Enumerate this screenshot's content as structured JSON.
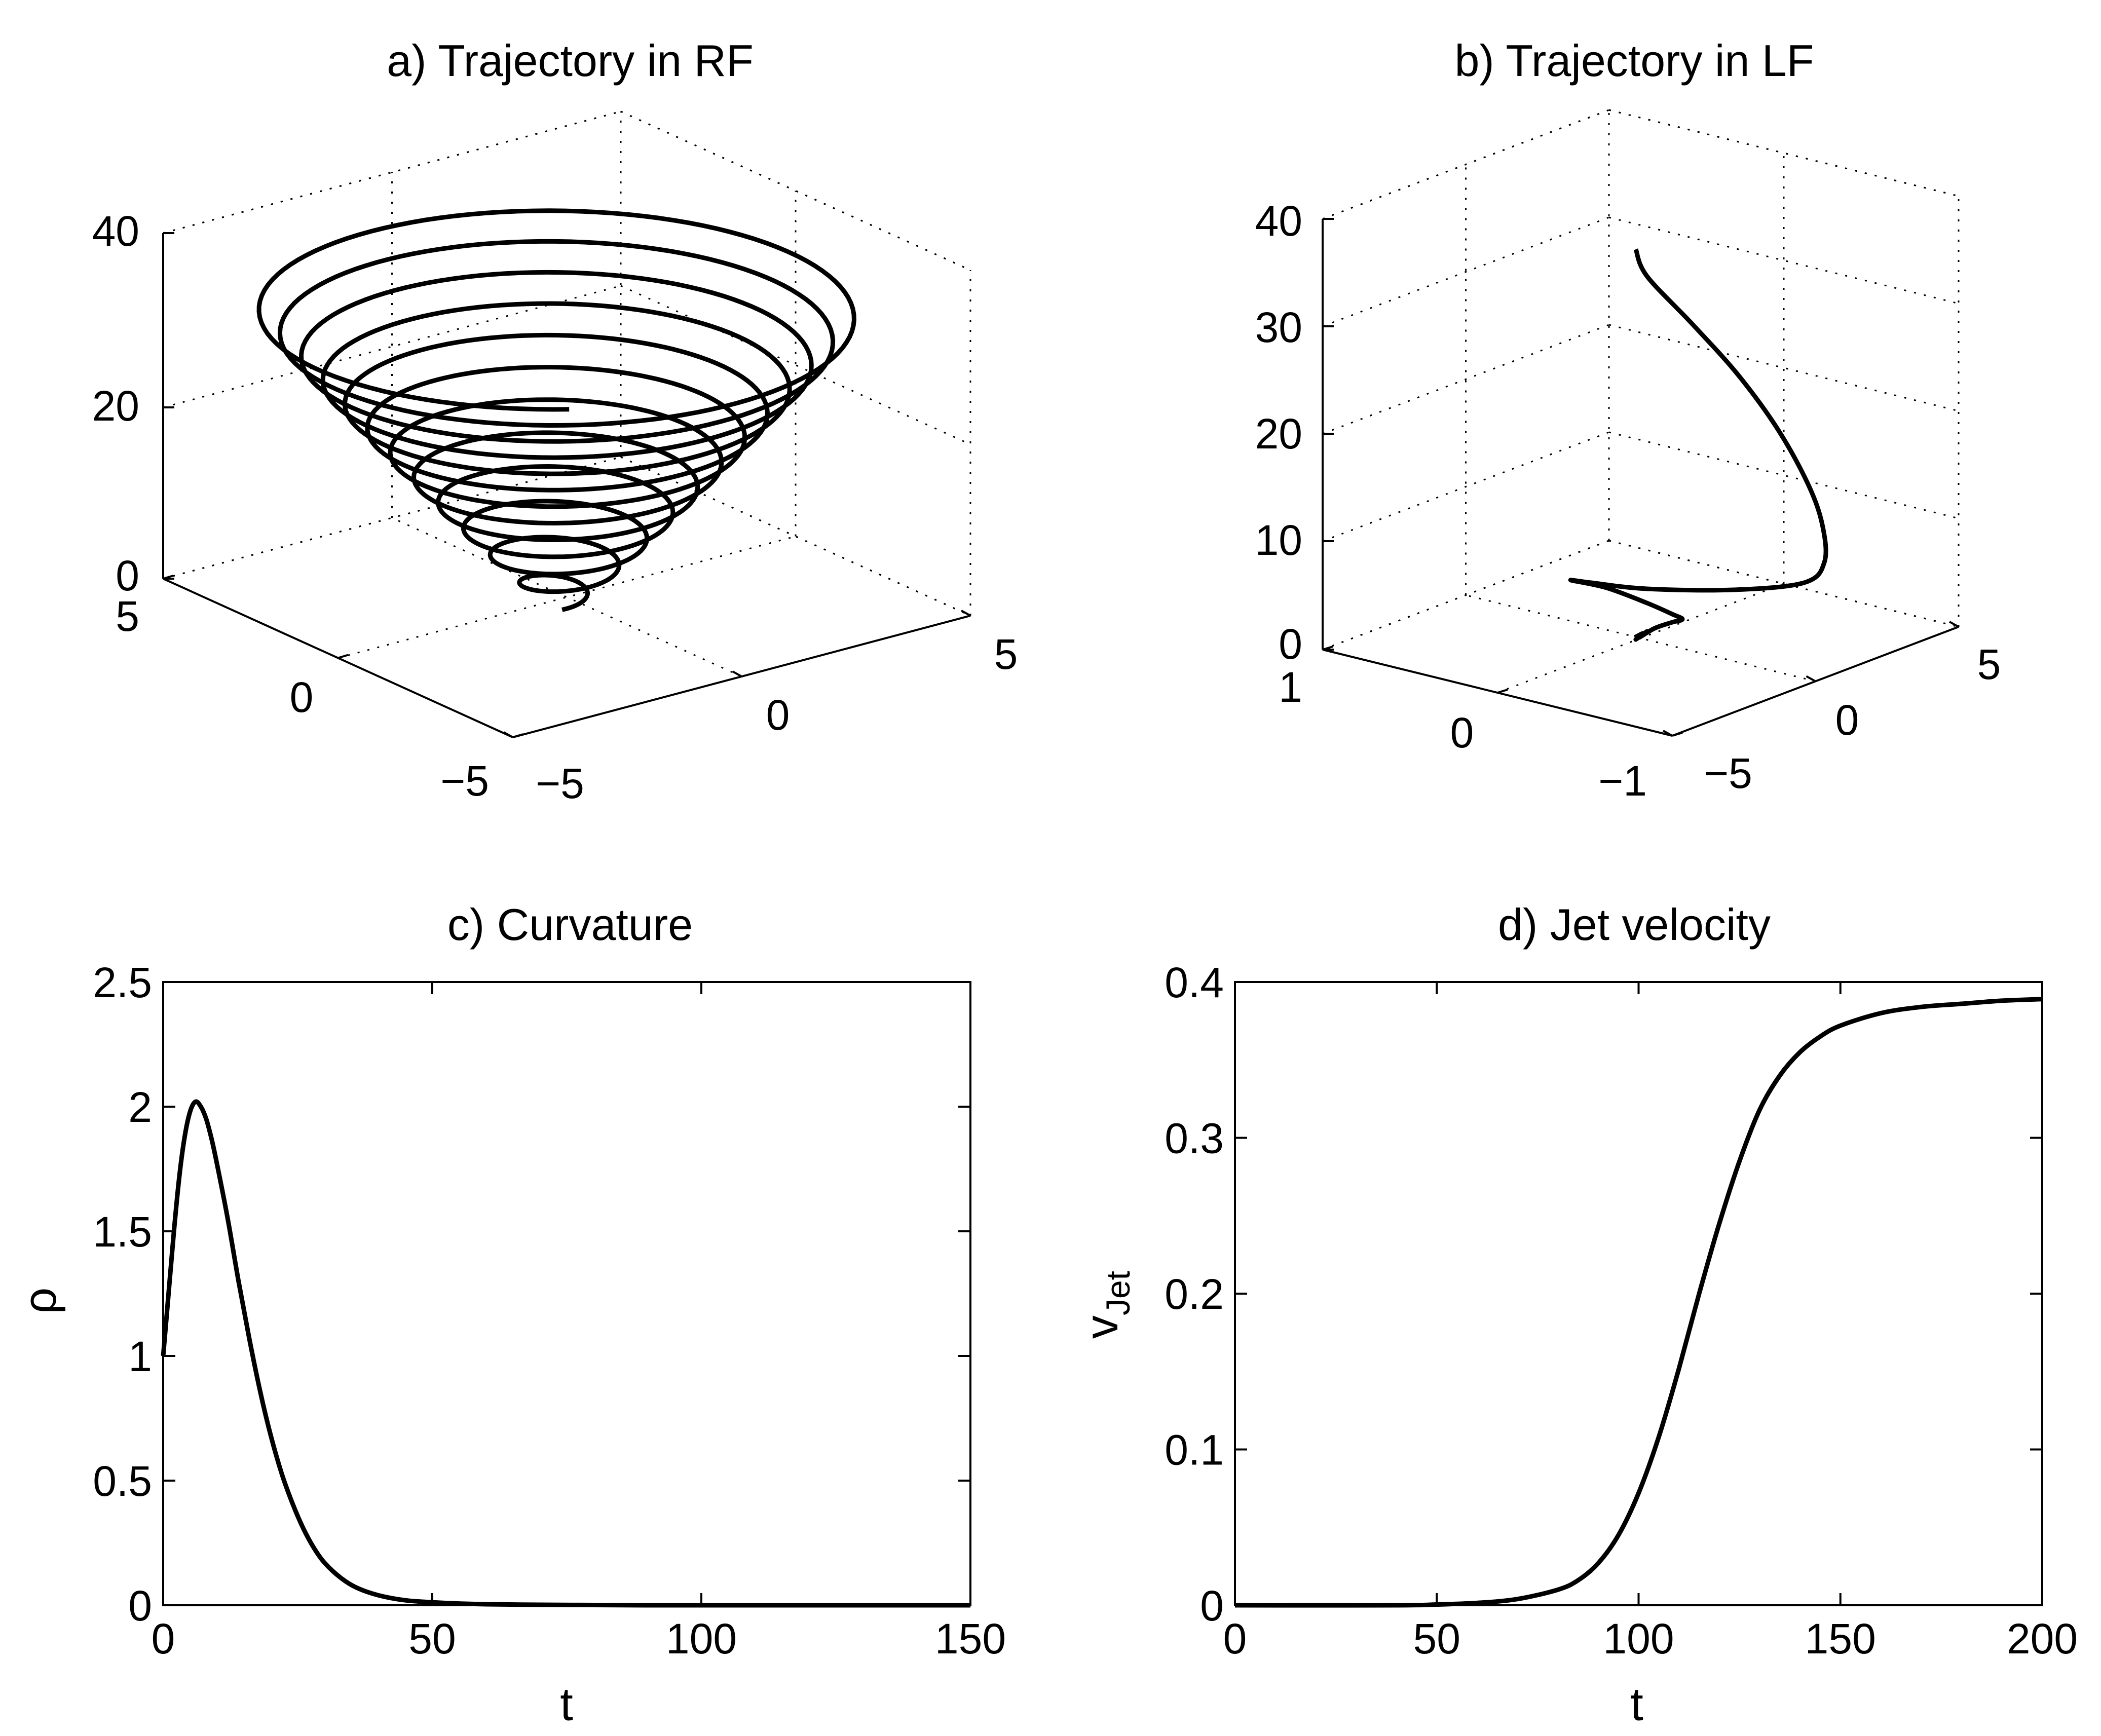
{
  "chart_data": [
    {
      "id": "a",
      "type": "line3d",
      "title": "a) Trajectory in RF",
      "axes": {
        "x": {
          "range": [
            -5,
            5
          ],
          "ticks": [
            -5,
            0,
            5
          ],
          "tick_labels": [
            "−5",
            "0",
            "5"
          ]
        },
        "y": {
          "range": [
            -5,
            5
          ],
          "ticks": [
            -5,
            0,
            5
          ],
          "tick_labels": [
            "−5",
            "0",
            "5"
          ]
        },
        "z": {
          "range": [
            0,
            40
          ],
          "ticks": [
            0,
            20,
            40
          ],
          "tick_labels": [
            "0",
            "20",
            "40"
          ]
        }
      },
      "grid": true,
      "series": [
        {
          "name": "trajectory",
          "description": "conical helix, ~12 turns, radius growing from ~0 at z=0 to ~5 at z=35",
          "turns": 12,
          "z_range": [
            0,
            35
          ],
          "max_radius": 5
        }
      ]
    },
    {
      "id": "b",
      "type": "line3d",
      "title": "b) Trajectory in LF",
      "axes": {
        "x": {
          "range": [
            -1,
            1
          ],
          "ticks": [
            -1,
            0,
            1
          ],
          "tick_labels": [
            "−1",
            "0",
            "1"
          ]
        },
        "y": {
          "range": [
            -5,
            5
          ],
          "ticks": [
            -5,
            0,
            5
          ],
          "tick_labels": [
            "−5",
            "0",
            "5"
          ]
        },
        "z": {
          "range": [
            0,
            40
          ],
          "ticks": [
            0,
            10,
            20,
            30,
            40
          ],
          "tick_labels": [
            "0",
            "10",
            "20",
            "30",
            "40"
          ]
        }
      },
      "grid": true,
      "series": [
        {
          "name": "trajectory",
          "description": "small oscillation near origin growing into a large curve rising to z~35"
        }
      ]
    },
    {
      "id": "c",
      "type": "line",
      "title": "c) Curvature",
      "xlabel": "t",
      "ylabel": "ρ",
      "xlim": [
        0,
        150
      ],
      "ylim": [
        0,
        2.5
      ],
      "xticks": [
        0,
        50,
        100,
        150
      ],
      "xtick_labels": [
        "0",
        "50",
        "100",
        "150"
      ],
      "yticks": [
        0,
        0.5,
        1,
        1.5,
        2,
        2.5
      ],
      "ytick_labels": [
        "0",
        "0.5",
        "1",
        "1.5",
        "2",
        "2.5"
      ],
      "series": [
        {
          "name": "curvature",
          "x": [
            0,
            1,
            2,
            3,
            4,
            5,
            6,
            7,
            8,
            9,
            10,
            12,
            14,
            16,
            18,
            20,
            22,
            24,
            26,
            28,
            30,
            33,
            36,
            40,
            45,
            50,
            55,
            60,
            70,
            80,
            90,
            100,
            120,
            150
          ],
          "y": [
            1.0,
            1.25,
            1.5,
            1.72,
            1.88,
            1.98,
            2.02,
            2.0,
            1.95,
            1.87,
            1.77,
            1.55,
            1.3,
            1.07,
            0.86,
            0.68,
            0.53,
            0.41,
            0.31,
            0.23,
            0.17,
            0.11,
            0.07,
            0.04,
            0.02,
            0.012,
            0.007,
            0.004,
            0.002,
            0.001,
            0.0,
            0.0,
            0.0,
            0.0
          ]
        }
      ]
    },
    {
      "id": "d",
      "type": "line",
      "title": "d) Jet velocity",
      "xlabel": "t",
      "ylabel": "v",
      "ylabel_sub": "Jet",
      "xlim": [
        0,
        200
      ],
      "ylim": [
        0,
        0.4
      ],
      "xticks": [
        0,
        50,
        100,
        150,
        200
      ],
      "xtick_labels": [
        "0",
        "50",
        "100",
        "150",
        "200"
      ],
      "yticks": [
        0,
        0.1,
        0.2,
        0.3,
        0.4
      ],
      "ytick_labels": [
        "0",
        "0.1",
        "0.2",
        "0.3",
        "0.4"
      ],
      "series": [
        {
          "name": "jet velocity",
          "x": [
            0,
            40,
            50,
            60,
            70,
            80,
            85,
            90,
            95,
            100,
            105,
            110,
            115,
            120,
            125,
            130,
            135,
            140,
            145,
            150,
            160,
            170,
            180,
            190,
            200
          ],
          "y": [
            0,
            0.0,
            0.0005,
            0.0015,
            0.004,
            0.01,
            0.016,
            0.027,
            0.045,
            0.072,
            0.108,
            0.152,
            0.2,
            0.245,
            0.285,
            0.318,
            0.34,
            0.355,
            0.365,
            0.372,
            0.38,
            0.384,
            0.386,
            0.388,
            0.389
          ]
        }
      ]
    }
  ]
}
